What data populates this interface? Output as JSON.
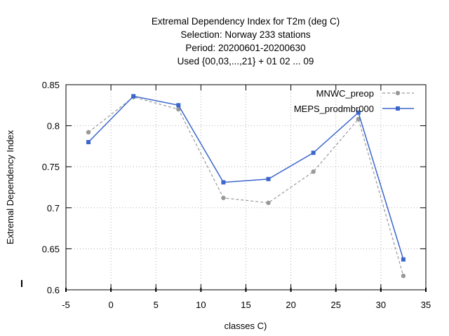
{
  "chart_data": {
    "type": "line",
    "title_lines": [
      "Extremal Dependency Index  for T2m (deg C)",
      "Selection: Norway    233 stations",
      "Period: 20200601-20200630",
      "Used {00,03,...,21} + 01 02 ... 09"
    ],
    "xlabel": "classes C)",
    "ylabel": "Extremal Dependency Index",
    "xlim": [
      -5,
      35
    ],
    "ylim": [
      0.6,
      0.85
    ],
    "xticks": [
      -5,
      0,
      5,
      10,
      15,
      20,
      25,
      30,
      35
    ],
    "yticks": [
      0.6,
      0.65,
      0.7,
      0.75,
      0.8,
      0.85
    ],
    "grid": true,
    "legend_position": "top-right",
    "series": [
      {
        "name": "MNWC_preop",
        "color": "#999999",
        "dashed": true,
        "x": [
          -2.5,
          2.5,
          7.5,
          12.5,
          17.5,
          22.5,
          27.5,
          32.5
        ],
        "y": [
          0.792,
          0.835,
          0.82,
          0.712,
          0.706,
          0.744,
          0.808,
          0.617
        ]
      },
      {
        "name": "MEPS_prodmbr000",
        "color": "#3a66cc",
        "dashed": false,
        "x": [
          -2.5,
          2.5,
          7.5,
          12.5,
          17.5,
          22.5,
          27.5,
          32.5
        ],
        "y": [
          0.78,
          0.836,
          0.825,
          0.731,
          0.735,
          0.767,
          0.816,
          0.637
        ]
      }
    ]
  }
}
